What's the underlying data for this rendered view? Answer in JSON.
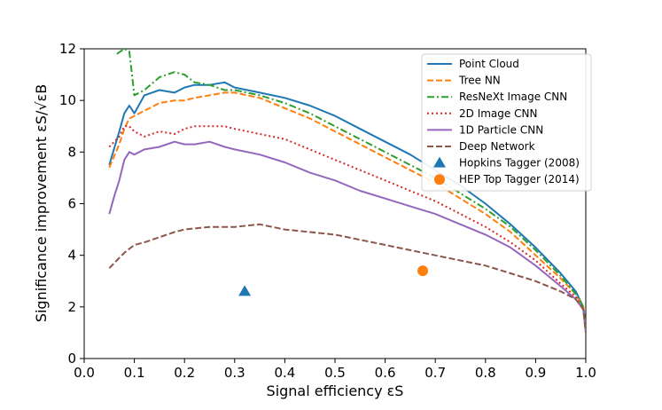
{
  "chart_data": {
    "type": "line",
    "xlabel": "Signal efficiency εS",
    "ylabel": "Significance improvement εS/√εB",
    "xlim": [
      0.0,
      1.0
    ],
    "ylim": [
      0,
      12
    ],
    "xticks": [
      "0.0",
      "0.1",
      "0.2",
      "0.3",
      "0.4",
      "0.5",
      "0.6",
      "0.7",
      "0.8",
      "0.9",
      "1.0"
    ],
    "yticks": [
      "0",
      "2",
      "4",
      "6",
      "8",
      "10",
      "12"
    ],
    "grid": false,
    "legend_position": "top-right",
    "series": [
      {
        "name": "Point Cloud",
        "color": "#1f77b4",
        "dash": "solid",
        "x": [
          0.05,
          0.07,
          0.08,
          0.09,
          0.1,
          0.12,
          0.15,
          0.18,
          0.2,
          0.22,
          0.25,
          0.28,
          0.3,
          0.35,
          0.4,
          0.45,
          0.5,
          0.55,
          0.6,
          0.65,
          0.7,
          0.75,
          0.8,
          0.85,
          0.9,
          0.95,
          0.98,
          0.995,
          1.0
        ],
        "y": [
          7.5,
          8.8,
          9.5,
          9.8,
          9.5,
          10.2,
          10.4,
          10.3,
          10.5,
          10.6,
          10.6,
          10.7,
          10.5,
          10.3,
          10.1,
          9.8,
          9.4,
          8.9,
          8.4,
          7.9,
          7.3,
          6.7,
          6.0,
          5.2,
          4.3,
          3.3,
          2.6,
          2.0,
          1.2
        ]
      },
      {
        "name": "Tree NN",
        "color": "#ff7f0e",
        "dash": "dashed",
        "x": [
          0.05,
          0.07,
          0.08,
          0.09,
          0.1,
          0.12,
          0.15,
          0.18,
          0.2,
          0.22,
          0.25,
          0.28,
          0.3,
          0.35,
          0.4,
          0.45,
          0.5,
          0.55,
          0.6,
          0.65,
          0.7,
          0.75,
          0.8,
          0.85,
          0.9,
          0.95,
          0.98,
          0.995,
          1.0
        ],
        "y": [
          7.4,
          8.3,
          8.9,
          9.3,
          9.4,
          9.6,
          9.9,
          10.0,
          10.0,
          10.1,
          10.2,
          10.3,
          10.3,
          10.1,
          9.7,
          9.3,
          8.8,
          8.3,
          7.8,
          7.3,
          6.8,
          6.2,
          5.6,
          4.9,
          4.0,
          3.1,
          2.5,
          2.0,
          1.2
        ]
      },
      {
        "name": "ResNeXt Image CNN",
        "color": "#2ca02c",
        "dash": "dashdot",
        "x": [
          0.065,
          0.08,
          0.09,
          0.1,
          0.12,
          0.15,
          0.18,
          0.2,
          0.22,
          0.25,
          0.28,
          0.3,
          0.35,
          0.4,
          0.45,
          0.5,
          0.55,
          0.6,
          0.65,
          0.7,
          0.75,
          0.8,
          0.85,
          0.9,
          0.95,
          0.98,
          0.995,
          1.0
        ],
        "y": [
          11.8,
          12.0,
          11.9,
          10.2,
          10.4,
          10.9,
          11.1,
          11.0,
          10.7,
          10.6,
          10.4,
          10.4,
          10.2,
          9.9,
          9.5,
          9.0,
          8.5,
          8.0,
          7.5,
          7.0,
          6.4,
          5.8,
          5.1,
          4.2,
          3.2,
          2.5,
          2.0,
          1.2
        ]
      },
      {
        "name": "2D Image CNN",
        "color": "#d62728",
        "dash": "dotted",
        "x": [
          0.05,
          0.07,
          0.08,
          0.09,
          0.1,
          0.12,
          0.15,
          0.18,
          0.2,
          0.22,
          0.25,
          0.28,
          0.3,
          0.35,
          0.4,
          0.45,
          0.5,
          0.55,
          0.6,
          0.65,
          0.7,
          0.75,
          0.8,
          0.85,
          0.9,
          0.95,
          0.98,
          0.995,
          1.0
        ],
        "y": [
          8.2,
          8.6,
          9.0,
          9.0,
          8.8,
          8.6,
          8.8,
          8.7,
          8.9,
          9.0,
          9.0,
          9.0,
          8.9,
          8.7,
          8.5,
          8.1,
          7.7,
          7.3,
          6.9,
          6.5,
          6.1,
          5.6,
          5.1,
          4.5,
          3.8,
          2.9,
          2.4,
          1.9,
          1.2
        ]
      },
      {
        "name": "1D Particle CNN",
        "color": "#9467bd",
        "dash": "solid",
        "x": [
          0.05,
          0.06,
          0.07,
          0.08,
          0.09,
          0.1,
          0.12,
          0.15,
          0.18,
          0.2,
          0.22,
          0.25,
          0.28,
          0.3,
          0.35,
          0.4,
          0.45,
          0.5,
          0.55,
          0.6,
          0.65,
          0.7,
          0.75,
          0.8,
          0.85,
          0.9,
          0.95,
          0.98,
          0.995,
          1.0
        ],
        "y": [
          5.6,
          6.3,
          6.9,
          7.7,
          8.0,
          7.9,
          8.1,
          8.2,
          8.4,
          8.3,
          8.3,
          8.4,
          8.2,
          8.1,
          7.9,
          7.6,
          7.2,
          6.9,
          6.5,
          6.2,
          5.9,
          5.6,
          5.2,
          4.8,
          4.3,
          3.6,
          2.8,
          2.3,
          1.9,
          1.0
        ]
      },
      {
        "name": "Deep Network",
        "color": "#8c564b",
        "dash": "dashed",
        "x": [
          0.05,
          0.07,
          0.08,
          0.1,
          0.12,
          0.15,
          0.18,
          0.2,
          0.25,
          0.3,
          0.35,
          0.4,
          0.45,
          0.5,
          0.55,
          0.6,
          0.65,
          0.7,
          0.75,
          0.8,
          0.85,
          0.9,
          0.95,
          0.98,
          0.995,
          1.0
        ],
        "y": [
          3.5,
          3.9,
          4.1,
          4.4,
          4.5,
          4.7,
          4.9,
          5.0,
          5.1,
          5.1,
          5.2,
          5.0,
          4.9,
          4.8,
          4.6,
          4.4,
          4.2,
          4.0,
          3.8,
          3.6,
          3.3,
          3.0,
          2.6,
          2.3,
          1.9,
          1.0
        ]
      }
    ],
    "markers": [
      {
        "name": "Hopkins Tagger (2008)",
        "color": "#1f77b4",
        "shape": "triangle",
        "x": 0.32,
        "y": 2.6
      },
      {
        "name": "HEP Top Tagger (2014)",
        "color": "#ff7f0e",
        "shape": "circle",
        "x": 0.675,
        "y": 3.4
      }
    ]
  }
}
